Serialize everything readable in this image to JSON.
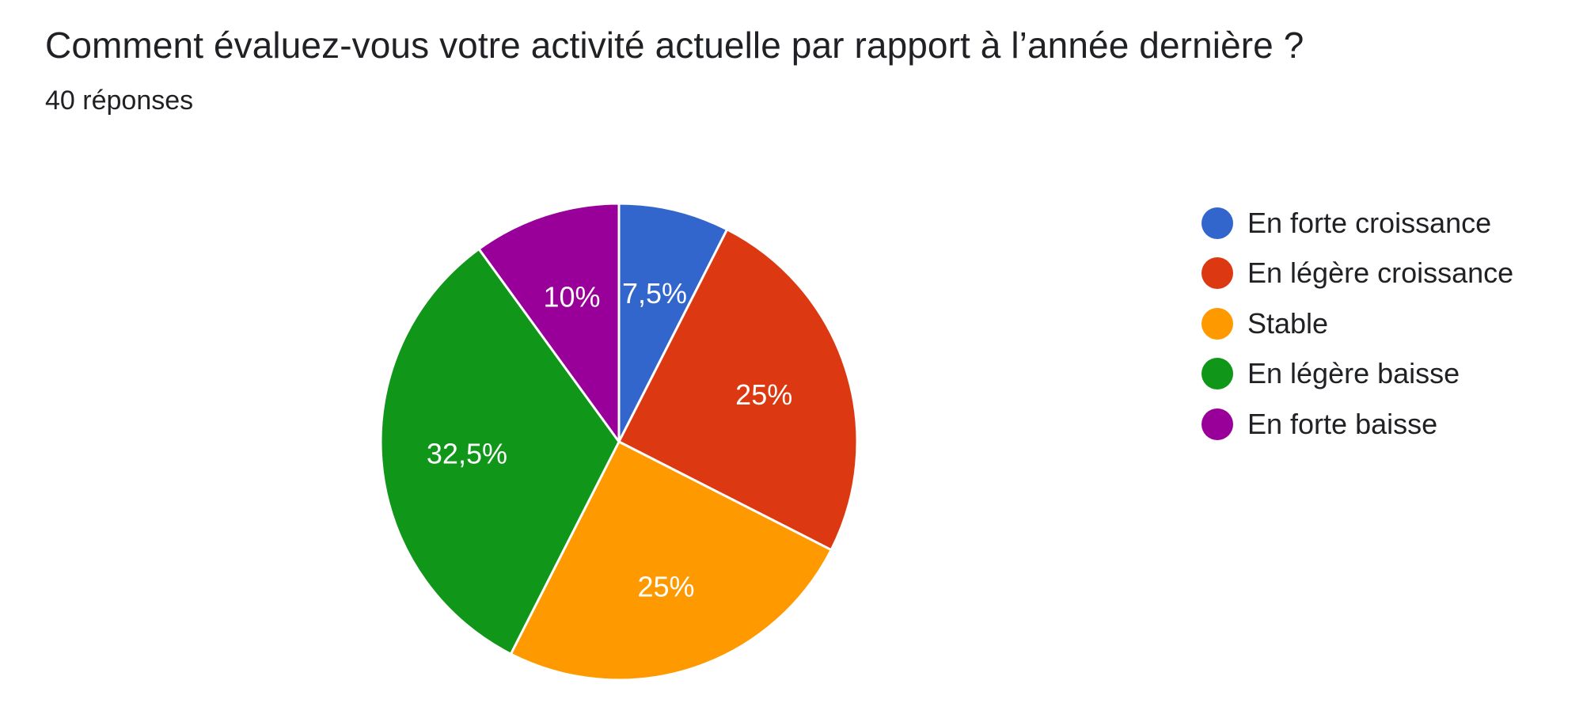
{
  "header": {
    "title": "Comment évaluez-vous votre activité actuelle par rapport à l’année dernière ?",
    "subtitle": "40 réponses"
  },
  "chart_data": {
    "type": "pie",
    "title": "Comment évaluez-vous votre activité actuelle par rapport à l’année dernière ?",
    "subtitle": "40 réponses",
    "total_responses": 40,
    "legend_position": "right",
    "start_angle_deg": 90,
    "direction": "clockwise",
    "slices": [
      {
        "label": "En forte croissance",
        "value": 7.5,
        "display": "7,5%",
        "color": "#3366cc"
      },
      {
        "label": "En légère croissance",
        "value": 25,
        "display": "25%",
        "color": "#dc3912"
      },
      {
        "label": "Stable",
        "value": 25,
        "display": "25%",
        "color": "#ff9900"
      },
      {
        "label": "En légère baisse",
        "value": 32.5,
        "display": "32,5%",
        "color": "#109618"
      },
      {
        "label": "En forte baisse",
        "value": 10,
        "display": "10%",
        "color": "#990099"
      }
    ]
  }
}
